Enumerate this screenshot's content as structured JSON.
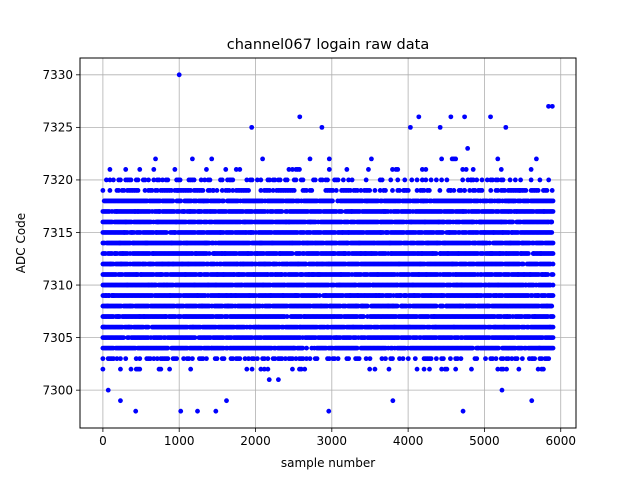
{
  "chart_data": {
    "type": "scatter",
    "title": "channel067 logain raw data",
    "xlabel": "sample number",
    "ylabel": "ADC Code",
    "xlim": [
      -300,
      6200
    ],
    "ylim": [
      7296.4,
      7331.6
    ],
    "xticks": [
      0,
      1000,
      2000,
      3000,
      4000,
      5000,
      6000
    ],
    "yticks": [
      7300,
      7305,
      7310,
      7315,
      7320,
      7325,
      7330
    ],
    "grid": true,
    "marker_color": "#0000ff",
    "n_samples": 5900,
    "typical_range": [
      7303,
      7320
    ],
    "notable_points": [
      {
        "x": 1000,
        "y": 7330
      },
      {
        "x": 2580,
        "y": 7326
      },
      {
        "x": 4140,
        "y": 7326
      },
      {
        "x": 4560,
        "y": 7326
      },
      {
        "x": 4740,
        "y": 7326
      },
      {
        "x": 5080,
        "y": 7326
      },
      {
        "x": 5840,
        "y": 7327
      },
      {
        "x": 5890,
        "y": 7327
      },
      {
        "x": 1950,
        "y": 7325
      },
      {
        "x": 2870,
        "y": 7325
      },
      {
        "x": 4030,
        "y": 7325
      },
      {
        "x": 4420,
        "y": 7325
      },
      {
        "x": 5280,
        "y": 7325
      },
      {
        "x": 1020,
        "y": 7298
      },
      {
        "x": 1240,
        "y": 7298
      },
      {
        "x": 1480,
        "y": 7298
      },
      {
        "x": 2960,
        "y": 7298
      },
      {
        "x": 4720,
        "y": 7298
      },
      {
        "x": 430,
        "y": 7298
      },
      {
        "x": 230,
        "y": 7299
      },
      {
        "x": 1620,
        "y": 7299
      },
      {
        "x": 3800,
        "y": 7299
      },
      {
        "x": 5620,
        "y": 7299
      },
      {
        "x": 70,
        "y": 7300
      },
      {
        "x": 5230,
        "y": 7300
      }
    ]
  }
}
